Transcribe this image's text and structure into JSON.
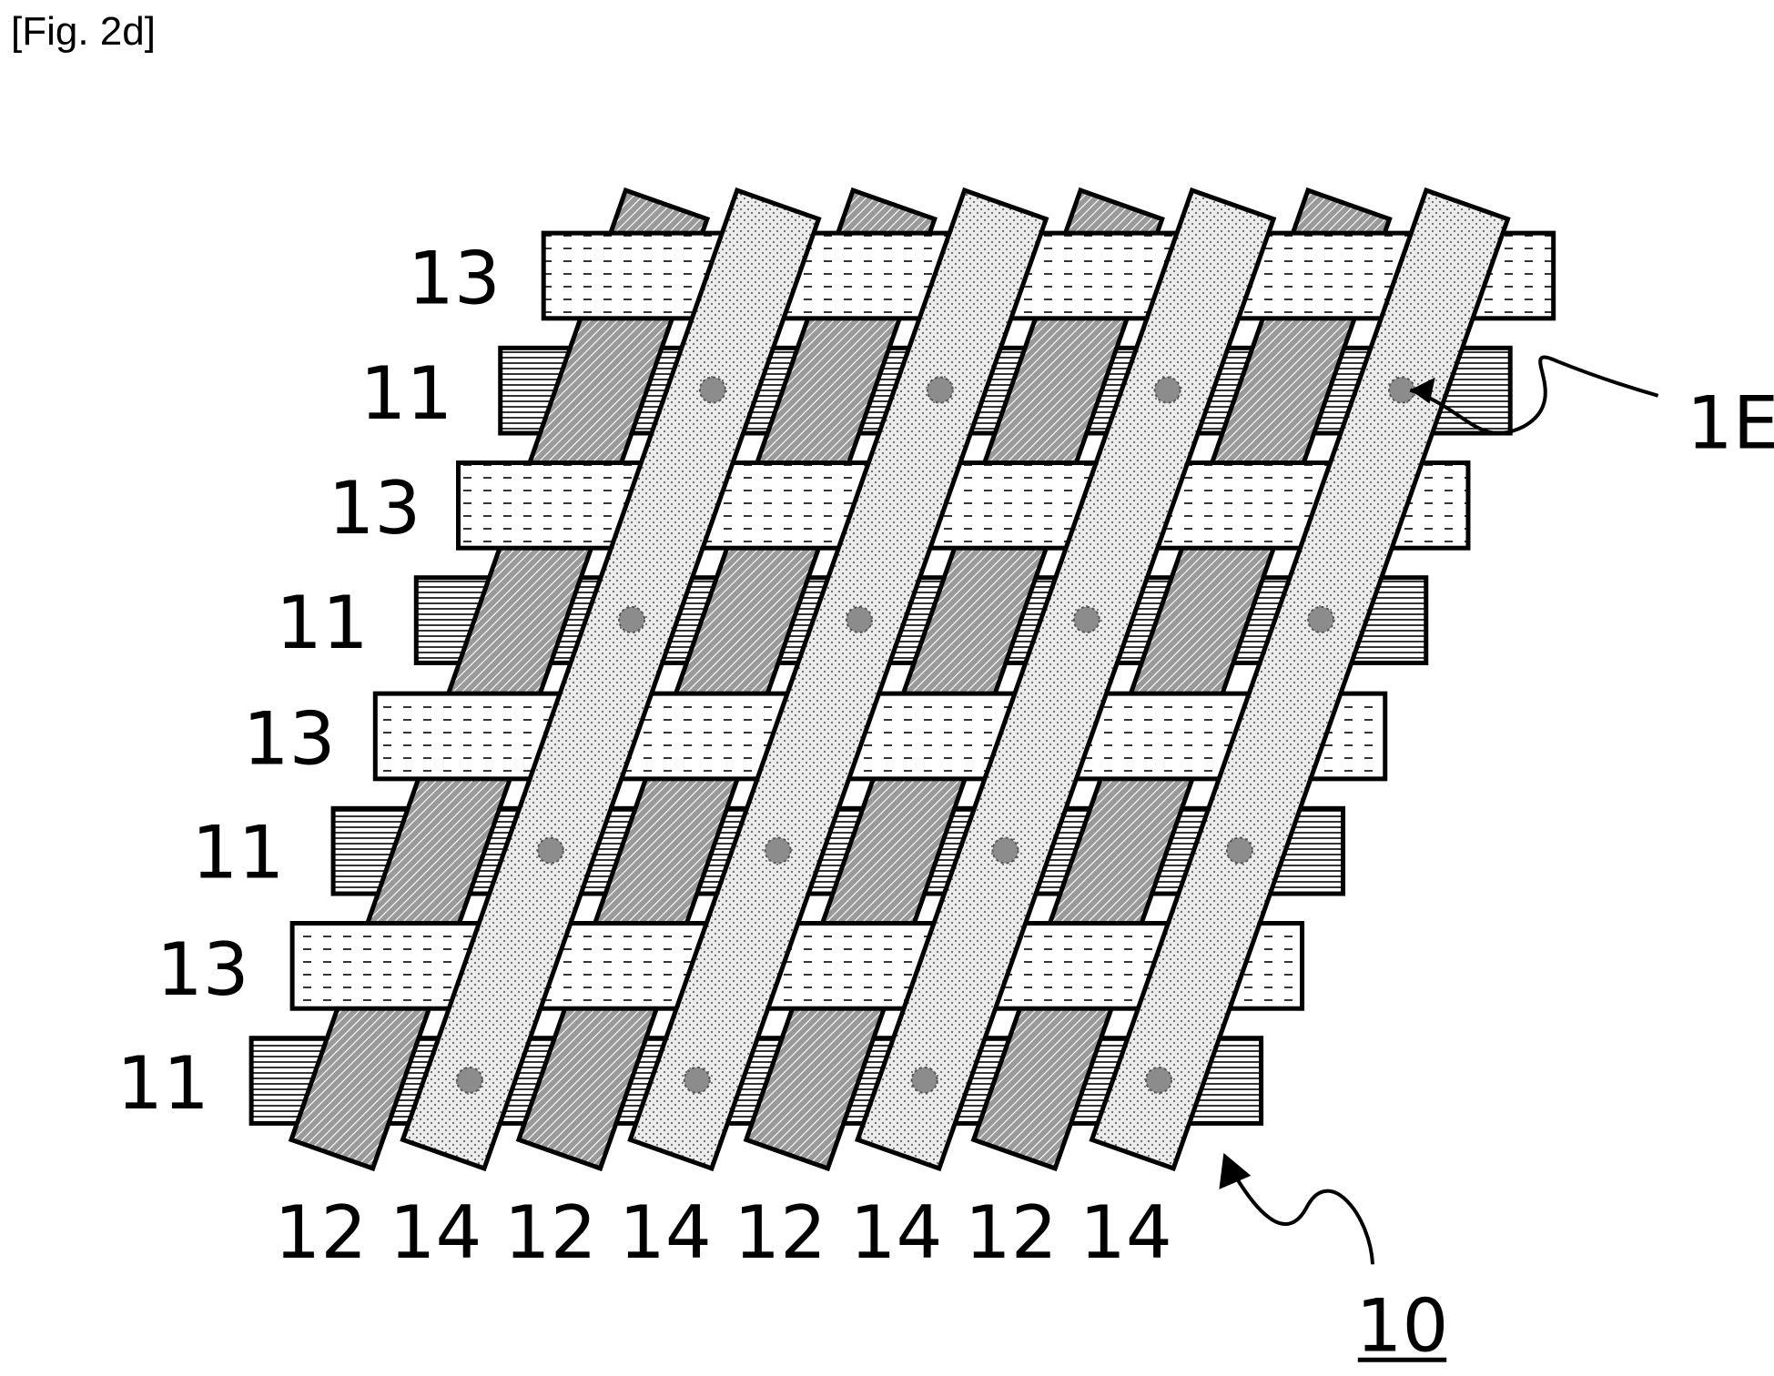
{
  "figure_label": "[Fig. 2d]",
  "row_labels": [
    "13",
    "11",
    "13",
    "11",
    "13",
    "11",
    "13",
    "11"
  ],
  "column_labels": [
    "12",
    "14",
    "12",
    "14",
    "12",
    "14",
    "12",
    "14"
  ],
  "callouts": {
    "element_label": "1E",
    "assembly_label": "10"
  },
  "colors": {
    "stroke": "#000000",
    "background": "#ffffff",
    "dot_marker": "#8c8c8c"
  }
}
